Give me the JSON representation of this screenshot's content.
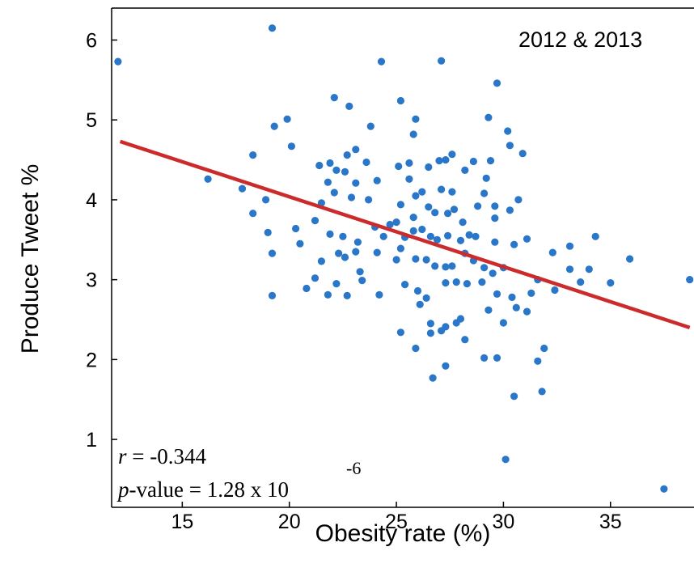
{
  "chart_data": {
    "type": "scatter",
    "title": "",
    "xlabel": "Obesity rate (%)",
    "ylabel": "Produce Tweet %",
    "xlim": [
      11.7,
      38.9
    ],
    "ylim": [
      0.15,
      6.4
    ],
    "xticks": [
      15,
      20,
      25,
      30,
      35
    ],
    "yticks": [
      1,
      2,
      3,
      4,
      5,
      6
    ],
    "grid": false,
    "legend": "none",
    "annotations": {
      "period": "2012 & 2013",
      "r_symbol": "r",
      "r_text": " = -0.344",
      "p_symbol": "p",
      "p_text": "-value = 1.28 x 10",
      "p_exponent": "-6"
    },
    "point_color": "#2a77c9",
    "line_color": "#cc2b2b",
    "trend_line": {
      "x": [
        12.1,
        38.7
      ],
      "y": [
        4.73,
        2.4
      ]
    },
    "points": [
      [
        12.0,
        5.73
      ],
      [
        19.2,
        6.15
      ],
      [
        24.3,
        5.73
      ],
      [
        27.1,
        5.74
      ],
      [
        29.7,
        5.46
      ],
      [
        22.1,
        5.28
      ],
      [
        22.8,
        5.17
      ],
      [
        25.2,
        5.24
      ],
      [
        19.3,
        4.92
      ],
      [
        19.9,
        5.01
      ],
      [
        23.8,
        4.92
      ],
      [
        25.9,
        5.01
      ],
      [
        25.8,
        4.82
      ],
      [
        29.3,
        5.03
      ],
      [
        30.2,
        4.86
      ],
      [
        20.1,
        4.67
      ],
      [
        18.3,
        4.56
      ],
      [
        21.9,
        4.46
      ],
      [
        22.2,
        4.37
      ],
      [
        22.7,
        4.56
      ],
      [
        23.1,
        4.63
      ],
      [
        23.6,
        4.47
      ],
      [
        25.1,
        4.42
      ],
      [
        25.6,
        4.46
      ],
      [
        26.5,
        4.41
      ],
      [
        27.0,
        4.49
      ],
      [
        27.3,
        4.5
      ],
      [
        27.6,
        4.57
      ],
      [
        28.2,
        4.37
      ],
      [
        28.6,
        4.48
      ],
      [
        29.4,
        4.49
      ],
      [
        30.3,
        4.68
      ],
      [
        30.9,
        4.58
      ],
      [
        16.2,
        4.26
      ],
      [
        17.8,
        4.14
      ],
      [
        21.4,
        4.43
      ],
      [
        21.8,
        4.22
      ],
      [
        22.6,
        4.35
      ],
      [
        23.1,
        4.21
      ],
      [
        24.1,
        4.24
      ],
      [
        25.6,
        4.26
      ],
      [
        26.2,
        4.1
      ],
      [
        27.1,
        4.13
      ],
      [
        27.6,
        4.1
      ],
      [
        29.1,
        4.08
      ],
      [
        29.2,
        4.27
      ],
      [
        30.7,
        4.0
      ],
      [
        18.3,
        3.83
      ],
      [
        18.9,
        4.0
      ],
      [
        21.5,
        3.96
      ],
      [
        22.1,
        4.09
      ],
      [
        22.9,
        4.03
      ],
      [
        23.7,
        4.0
      ],
      [
        24.7,
        3.69
      ],
      [
        25.2,
        3.94
      ],
      [
        25.8,
        3.78
      ],
      [
        25.9,
        4.05
      ],
      [
        26.5,
        3.91
      ],
      [
        26.8,
        3.84
      ],
      [
        27.4,
        3.83
      ],
      [
        27.7,
        3.88
      ],
      [
        28.1,
        3.72
      ],
      [
        28.8,
        3.92
      ],
      [
        29.6,
        3.92
      ],
      [
        29.6,
        3.77
      ],
      [
        30.3,
        3.87
      ],
      [
        19.0,
        3.59
      ],
      [
        20.3,
        3.64
      ],
      [
        21.2,
        3.74
      ],
      [
        21.9,
        3.57
      ],
      [
        22.5,
        3.54
      ],
      [
        23.2,
        3.47
      ],
      [
        24.0,
        3.66
      ],
      [
        24.4,
        3.54
      ],
      [
        25.0,
        3.72
      ],
      [
        25.4,
        3.53
      ],
      [
        25.8,
        3.61
      ],
      [
        26.2,
        3.63
      ],
      [
        26.6,
        3.54
      ],
      [
        26.9,
        3.5
      ],
      [
        27.4,
        3.55
      ],
      [
        28.0,
        3.49
      ],
      [
        28.4,
        3.56
      ],
      [
        28.7,
        3.54
      ],
      [
        29.6,
        3.47
      ],
      [
        30.5,
        3.44
      ],
      [
        31.1,
        3.51
      ],
      [
        34.3,
        3.54
      ],
      [
        19.2,
        3.33
      ],
      [
        20.5,
        3.45
      ],
      [
        21.5,
        3.23
      ],
      [
        22.3,
        3.33
      ],
      [
        22.6,
        3.28
      ],
      [
        23.1,
        3.35
      ],
      [
        23.3,
        3.1
      ],
      [
        24.1,
        3.34
      ],
      [
        25.0,
        3.25
      ],
      [
        25.2,
        3.39
      ],
      [
        25.9,
        3.26
      ],
      [
        26.4,
        3.25
      ],
      [
        26.8,
        3.17
      ],
      [
        27.3,
        3.16
      ],
      [
        27.6,
        3.17
      ],
      [
        28.2,
        3.33
      ],
      [
        28.6,
        3.24
      ],
      [
        29.1,
        3.15
      ],
      [
        29.5,
        3.08
      ],
      [
        30.0,
        3.15
      ],
      [
        31.6,
        3.0
      ],
      [
        32.3,
        3.34
      ],
      [
        33.1,
        3.42
      ],
      [
        34.0,
        3.13
      ],
      [
        35.9,
        3.26
      ],
      [
        38.7,
        3.0
      ],
      [
        19.2,
        2.8
      ],
      [
        20.8,
        2.89
      ],
      [
        21.2,
        3.02
      ],
      [
        21.8,
        2.81
      ],
      [
        22.2,
        2.95
      ],
      [
        22.7,
        2.8
      ],
      [
        23.4,
        2.99
      ],
      [
        24.2,
        2.81
      ],
      [
        25.4,
        2.94
      ],
      [
        26.0,
        2.86
      ],
      [
        26.4,
        2.77
      ],
      [
        27.3,
        2.96
      ],
      [
        27.8,
        2.97
      ],
      [
        28.3,
        2.95
      ],
      [
        29.0,
        2.97
      ],
      [
        29.7,
        2.82
      ],
      [
        30.4,
        2.78
      ],
      [
        31.3,
        2.83
      ],
      [
        32.4,
        2.87
      ],
      [
        33.1,
        3.13
      ],
      [
        33.6,
        2.97
      ],
      [
        35.0,
        2.96
      ],
      [
        26.1,
        2.69
      ],
      [
        26.6,
        2.45
      ],
      [
        27.3,
        2.41
      ],
      [
        27.8,
        2.46
      ],
      [
        28.0,
        2.51
      ],
      [
        29.3,
        2.62
      ],
      [
        30.0,
        2.46
      ],
      [
        30.6,
        2.65
      ],
      [
        31.1,
        2.6
      ],
      [
        25.2,
        2.34
      ],
      [
        26.6,
        2.33
      ],
      [
        27.1,
        2.36
      ],
      [
        25.9,
        2.14
      ],
      [
        28.2,
        2.25
      ],
      [
        29.1,
        2.02
      ],
      [
        29.7,
        2.02
      ],
      [
        31.9,
        2.14
      ],
      [
        31.6,
        1.98
      ],
      [
        27.3,
        1.92
      ],
      [
        26.7,
        1.77
      ],
      [
        30.5,
        1.54
      ],
      [
        31.8,
        1.6
      ],
      [
        30.1,
        0.75
      ],
      [
        37.5,
        0.38
      ]
    ]
  }
}
